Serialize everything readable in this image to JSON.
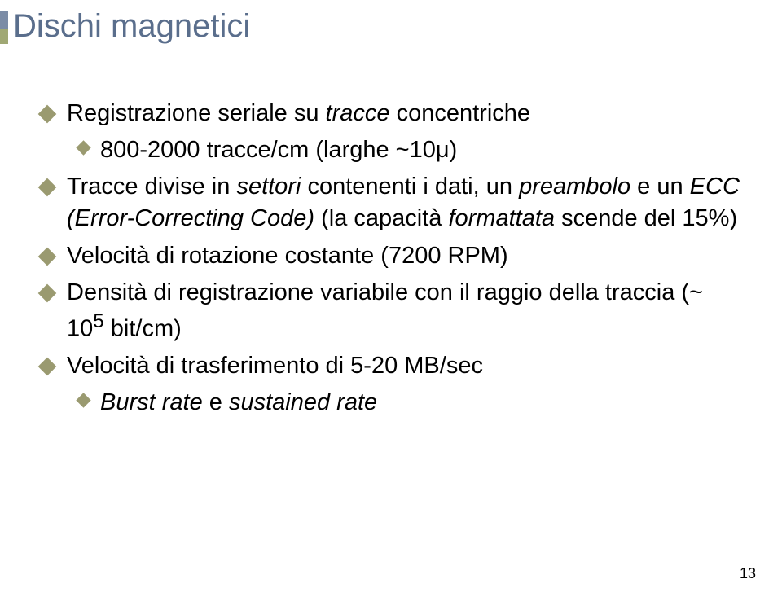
{
  "accent": {
    "top_color": "#7b8ca6",
    "bottom_color": "#a0a874"
  },
  "title": "Dischi magnetici",
  "title_color": "#5a6e8c",
  "bullet_color": "#9a9a70",
  "items": [
    {
      "level": 1,
      "spans": [
        {
          "text": "Registrazione seriale su ",
          "italic": false
        },
        {
          "text": "tracce",
          "italic": true
        },
        {
          "text": " concentriche",
          "italic": false
        }
      ]
    },
    {
      "level": 2,
      "spans": [
        {
          "text": "800-2000 tracce/cm (larghe ~10μ)",
          "italic": false
        }
      ]
    },
    {
      "level": 1,
      "spans": [
        {
          "text": "Tracce divise in ",
          "italic": false
        },
        {
          "text": "settori",
          "italic": true
        },
        {
          "text": " contenenti i dati, un ",
          "italic": false
        },
        {
          "text": "preambolo",
          "italic": true
        },
        {
          "text": " e un ",
          "italic": false
        },
        {
          "text": "ECC (Error-Correcting Code)",
          "italic": true
        },
        {
          "text": " (la capacità ",
          "italic": false
        },
        {
          "text": "formattata",
          "italic": true
        },
        {
          "text": " scende del 15%)",
          "italic": false
        }
      ]
    },
    {
      "level": 1,
      "spans": [
        {
          "text": "Velocità di rotazione costante (7200 RPM)",
          "italic": false
        }
      ]
    },
    {
      "level": 1,
      "spans": [
        {
          "text": "Densità di registrazione variabile con il raggio della traccia (~ 10",
          "italic": false
        },
        {
          "text": "5",
          "italic": false,
          "sup": true
        },
        {
          "text": " bit/cm)",
          "italic": false
        }
      ]
    },
    {
      "level": 1,
      "spans": [
        {
          "text": "Velocità di trasferimento di 5-20 MB/sec",
          "italic": false
        }
      ]
    },
    {
      "level": 2,
      "spans": [
        {
          "text": "Burst rate",
          "italic": true
        },
        {
          "text": " e ",
          "italic": false
        },
        {
          "text": "sustained rate",
          "italic": true
        }
      ]
    }
  ],
  "page_number": "13"
}
